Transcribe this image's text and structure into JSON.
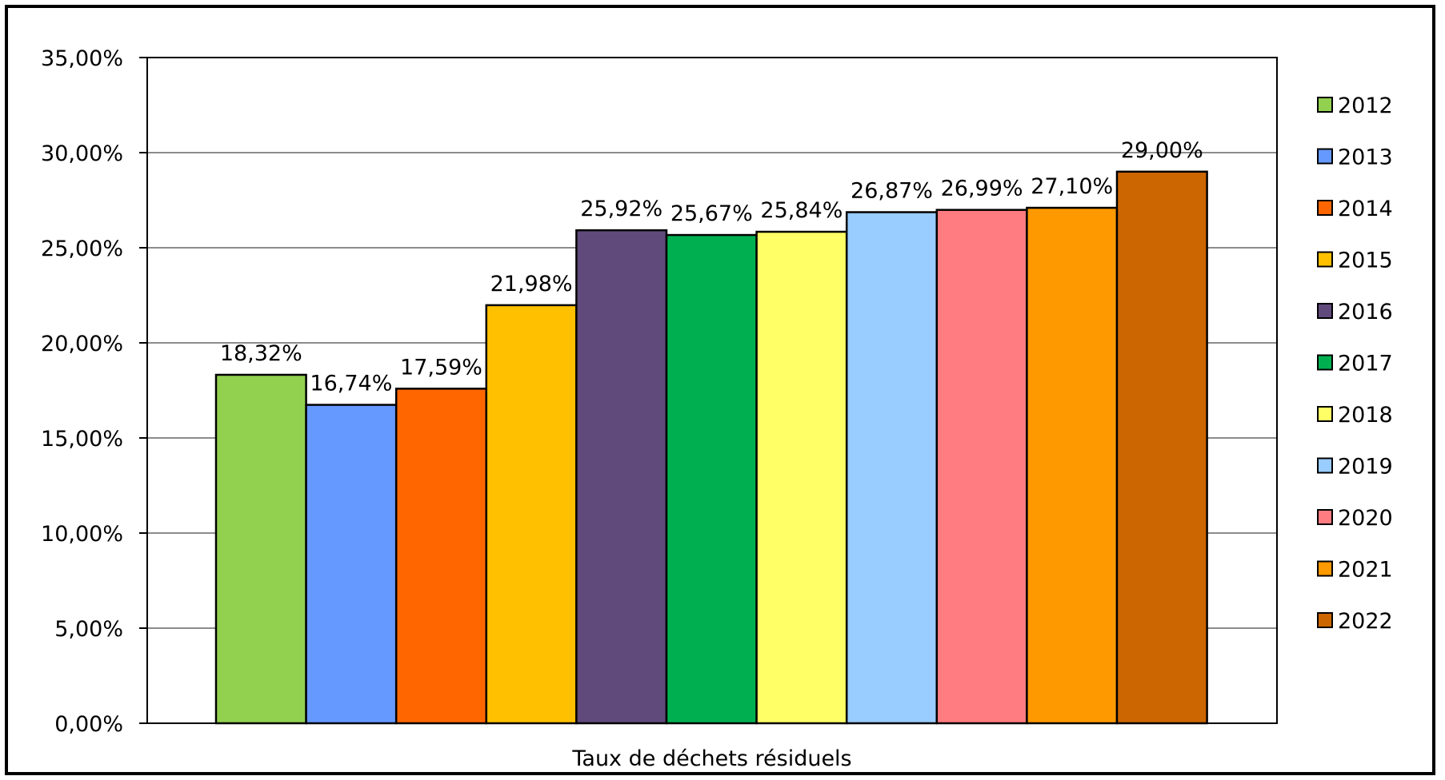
{
  "chart_data": {
    "type": "bar",
    "categories": [
      "Taux de déchets résiduels"
    ],
    "xlabel": "Taux de déchets résiduels",
    "ylim": [
      0,
      35
    ],
    "yticks": [
      "0,00%",
      "5,00%",
      "10,00%",
      "15,00%",
      "20,00%",
      "25,00%",
      "30,00%",
      "35,00%"
    ],
    "ytick_values": [
      0,
      5,
      10,
      15,
      20,
      25,
      30,
      35
    ],
    "grid": true,
    "legend_position": "right",
    "series": [
      {
        "name": "2012",
        "values": [
          18.32
        ],
        "label": "18,32%",
        "color": "#92D050"
      },
      {
        "name": "2013",
        "values": [
          16.74
        ],
        "label": "16,74%",
        "color": "#6699FF"
      },
      {
        "name": "2014",
        "values": [
          17.59
        ],
        "label": "17,59%",
        "color": "#FF6600"
      },
      {
        "name": "2015",
        "values": [
          21.98
        ],
        "label": "21,98%",
        "color": "#FFC000"
      },
      {
        "name": "2016",
        "values": [
          25.92
        ],
        "label": "25,92%",
        "color": "#604A7B"
      },
      {
        "name": "2017",
        "values": [
          25.67
        ],
        "label": "25,67%",
        "color": "#00B050"
      },
      {
        "name": "2018",
        "values": [
          25.84
        ],
        "label": "25,84%",
        "color": "#FFFF66"
      },
      {
        "name": "2019",
        "values": [
          26.87
        ],
        "label": "26,87%",
        "color": "#99CCFF"
      },
      {
        "name": "2020",
        "values": [
          26.99
        ],
        "label": "26,99%",
        "color": "#FF7C80"
      },
      {
        "name": "2021",
        "values": [
          27.1
        ],
        "label": "27,10%",
        "color": "#FF9900"
      },
      {
        "name": "2022",
        "values": [
          29.0
        ],
        "label": "29,00%",
        "color": "#CC6600"
      }
    ]
  }
}
